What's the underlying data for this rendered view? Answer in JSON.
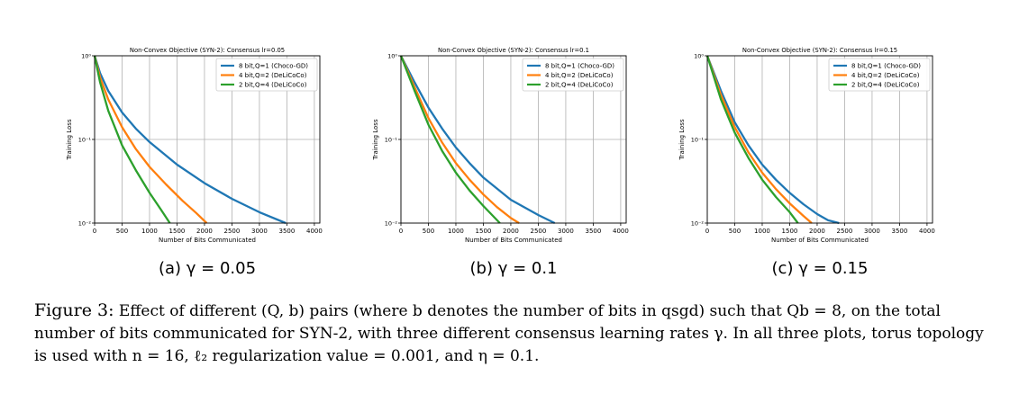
{
  "chart_data": [
    {
      "type": "line",
      "title": "Non-Convex Objective (SYN-2): Consensus lr=0.05",
      "xlabel": "Number of Bits Communicated",
      "ylabel": "Training Loss",
      "xlim": [
        0,
        4100
      ],
      "ylim": [
        0.01,
        1
      ],
      "yscale": "log",
      "xticks": [
        0,
        500,
        1000,
        1500,
        2000,
        2500,
        3000,
        3500,
        4000
      ],
      "yticks": [
        {
          "value": 1,
          "label": "10⁰"
        },
        {
          "value": 0.1,
          "label": "10⁻¹"
        },
        {
          "value": 0.01,
          "label": "10⁻²"
        }
      ],
      "grid": true,
      "legend_position": "top-right",
      "subcaption": "(a) γ = 0.05",
      "series": [
        {
          "name": "8 bit,Q=1 (Choco-GD)",
          "color": "#1f77b4",
          "x": [
            0,
            100,
            250,
            500,
            750,
            1000,
            1500,
            2000,
            2500,
            3000,
            3480
          ],
          "y": [
            1,
            0.62,
            0.38,
            0.21,
            0.135,
            0.093,
            0.05,
            0.03,
            0.0195,
            0.0135,
            0.01
          ]
        },
        {
          "name": "4 bit,Q=2 (DeLiCoCo)",
          "color": "#ff7f0e",
          "x": [
            0,
            100,
            250,
            500,
            750,
            1000,
            1300,
            1600,
            1850,
            2040
          ],
          "y": [
            1,
            0.55,
            0.3,
            0.14,
            0.077,
            0.047,
            0.029,
            0.0185,
            0.0132,
            0.01
          ]
        },
        {
          "name": "2 bit,Q=4 (DeLiCoCo)",
          "color": "#2ca02c",
          "x": [
            0,
            100,
            250,
            500,
            750,
            1000,
            1200,
            1370
          ],
          "y": [
            1,
            0.48,
            0.22,
            0.085,
            0.043,
            0.023,
            0.0147,
            0.01
          ]
        }
      ]
    },
    {
      "type": "line",
      "title": "Non-Convex Objective (SYN-2): Consensus lr=0.1",
      "xlabel": "Number of Bits Communicated",
      "ylabel": "Training Loss",
      "xlim": [
        0,
        4100
      ],
      "ylim": [
        0.01,
        1
      ],
      "yscale": "log",
      "xticks": [
        0,
        500,
        1000,
        1500,
        2000,
        2500,
        3000,
        3500,
        4000
      ],
      "yticks": [
        {
          "value": 1,
          "label": "10⁰"
        },
        {
          "value": 0.1,
          "label": "10⁻¹"
        },
        {
          "value": 0.01,
          "label": "10⁻²"
        }
      ],
      "grid": true,
      "legend_position": "top-right",
      "subcaption": "(b) γ = 0.1",
      "series": [
        {
          "name": "8 bit,Q=1 (Choco-GD)",
          "color": "#1f77b4",
          "x": [
            0,
            250,
            500,
            750,
            1000,
            1250,
            1500,
            2000,
            2500,
            2800
          ],
          "y": [
            1,
            0.48,
            0.24,
            0.135,
            0.08,
            0.052,
            0.035,
            0.019,
            0.0125,
            0.01
          ]
        },
        {
          "name": "4 bit,Q=2 (DeLiCoCo)",
          "color": "#ff7f0e",
          "x": [
            0,
            250,
            500,
            750,
            1000,
            1250,
            1500,
            1750,
            2000,
            2150
          ],
          "y": [
            1,
            0.42,
            0.18,
            0.092,
            0.052,
            0.033,
            0.022,
            0.0155,
            0.0115,
            0.01
          ]
        },
        {
          "name": "2 bit,Q=4 (DeLiCoCo)",
          "color": "#2ca02c",
          "x": [
            0,
            250,
            500,
            750,
            1000,
            1250,
            1500,
            1800
          ],
          "y": [
            1,
            0.38,
            0.15,
            0.073,
            0.04,
            0.0245,
            0.016,
            0.01
          ]
        }
      ]
    },
    {
      "type": "line",
      "title": "Non-Convex Objective (SYN-2): Consensus lr=0.15",
      "xlabel": "Number of Bits Communicated",
      "ylabel": "Training Loss",
      "xlim": [
        0,
        4100
      ],
      "ylim": [
        0.01,
        1
      ],
      "yscale": "log",
      "xticks": [
        0,
        500,
        1000,
        1500,
        2000,
        2500,
        3000,
        3500,
        4000
      ],
      "yticks": [
        {
          "value": 1,
          "label": "10⁰"
        },
        {
          "value": 0.1,
          "label": "10⁻¹"
        },
        {
          "value": 0.01,
          "label": "10⁻²"
        }
      ],
      "grid": true,
      "legend_position": "top-right",
      "subcaption": "(c) γ = 0.15",
      "series": [
        {
          "name": "8 bit,Q=1 (Choco-GD)",
          "color": "#1f77b4",
          "x": [
            0,
            250,
            500,
            750,
            1000,
            1250,
            1500,
            1750,
            2000,
            2200,
            2400
          ],
          "y": [
            1,
            0.38,
            0.16,
            0.085,
            0.05,
            0.033,
            0.023,
            0.0168,
            0.0128,
            0.0108,
            0.01
          ]
        },
        {
          "name": "4 bit,Q=2 (DeLiCoCo)",
          "color": "#ff7f0e",
          "x": [
            0,
            250,
            500,
            750,
            1000,
            1250,
            1500,
            1750,
            1900
          ],
          "y": [
            1,
            0.34,
            0.14,
            0.07,
            0.04,
            0.0255,
            0.0172,
            0.0122,
            0.01
          ]
        },
        {
          "name": "2 bit,Q=4 (DeLiCoCo)",
          "color": "#2ca02c",
          "x": [
            0,
            250,
            500,
            750,
            1000,
            1250,
            1500,
            1650
          ],
          "y": [
            1,
            0.3,
            0.12,
            0.06,
            0.033,
            0.0205,
            0.0135,
            0.01
          ]
        }
      ]
    }
  ],
  "caption": {
    "lead": "Figure 3:",
    "text": "Effect of different (Q, b) pairs (where b denotes the number of bits in qsgd) such that Qb = 8, on the total number of bits communicated for SYN-2, with three different consensus learning rates γ. In all three plots, torus topology is used with n = 16, ℓ₂ regularization value = 0.001, and η = 0.1."
  }
}
